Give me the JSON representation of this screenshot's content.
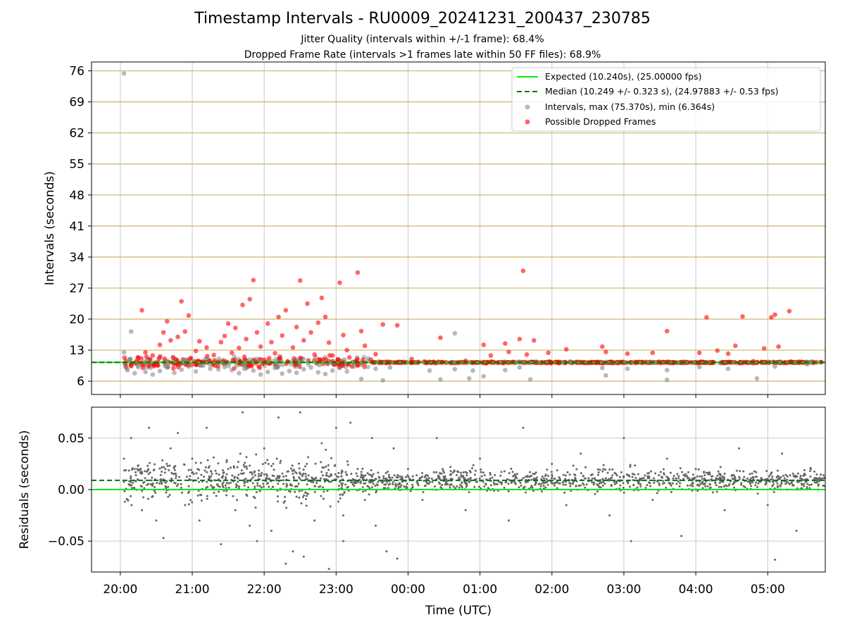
{
  "header": {
    "title": "Timestamp Intervals - RU0009_20241231_200437_230785",
    "subtitle_jitter": "Jitter Quality (intervals within +/-1 frame): 68.4%",
    "subtitle_dropped": "Dropped Frame Rate (intervals >1 frames late within 50 FF files): 68.9%"
  },
  "colors": {
    "expected": "#00ee00",
    "median": "#007700",
    "intervals": "#808080",
    "dropped": "#ff0000",
    "gridline": "#cdb56a",
    "residual_points": "#666666"
  },
  "chart_data": [
    {
      "type": "scatter",
      "title": "",
      "xlabel": "",
      "ylabel": "Intervals (seconds)",
      "ylim": [
        3,
        78
      ],
      "yticks": [
        6,
        13,
        20,
        27,
        34,
        41,
        48,
        55,
        62,
        69,
        76
      ],
      "ytick_labels": [
        "6",
        "13",
        "20",
        "27",
        "34",
        "41",
        "48",
        "55",
        "62",
        "69",
        "76"
      ],
      "xlim_hours": [
        19.6,
        29.8
      ],
      "grid": "horizontal and vertical",
      "legend_placement": "top-right",
      "legend": [
        "Expected (10.240s), (25.00000 fps)",
        "Median (10.249 +/- 0.323 s), (24.97883 +/- 0.53 fps)",
        "Intervals, max (75.370s), min (6.364s)",
        "Possible Dropped Frames"
      ],
      "expected_interval": 10.24,
      "median_interval": 10.249,
      "max_interval": 75.37,
      "min_interval": 6.364,
      "series": [
        {
          "name": "Intervals, max (75.370s), min (6.364s)",
          "points": [
            [
              20.05,
              75.4
            ],
            [
              20.05,
              12.5
            ],
            [
              20.1,
              8.5
            ],
            [
              20.15,
              17.2
            ],
            [
              20.2,
              7.8
            ],
            [
              20.25,
              9.2
            ],
            [
              20.35,
              8.1
            ],
            [
              20.45,
              7.5
            ],
            [
              20.55,
              8.3
            ],
            [
              20.65,
              9.1
            ],
            [
              20.75,
              7.9
            ],
            [
              20.85,
              8.6
            ],
            [
              20.95,
              9.3
            ],
            [
              21.05,
              8.2
            ],
            [
              21.15,
              9.5
            ],
            [
              21.25,
              8.8
            ],
            [
              21.35,
              9.9
            ],
            [
              21.45,
              9.2
            ],
            [
              21.55,
              8.5
            ],
            [
              21.65,
              7.8
            ],
            [
              21.75,
              8.9
            ],
            [
              21.85,
              8.4
            ],
            [
              21.95,
              7.5
            ],
            [
              22.05,
              8.1
            ],
            [
              22.15,
              9.0
            ],
            [
              22.25,
              7.7
            ],
            [
              22.35,
              8.3
            ],
            [
              22.45,
              7.9
            ],
            [
              22.55,
              8.7
            ],
            [
              22.65,
              9.1
            ],
            [
              22.75,
              8.0
            ],
            [
              22.85,
              7.6
            ],
            [
              22.95,
              8.4
            ],
            [
              23.05,
              9.0
            ],
            [
              23.15,
              8.2
            ],
            [
              23.25,
              9.3
            ],
            [
              23.35,
              6.5
            ],
            [
              23.55,
              8.8
            ],
            [
              23.65,
              6.2
            ],
            [
              23.75,
              9.1
            ],
            [
              24.3,
              8.4
            ],
            [
              24.45,
              6.4
            ],
            [
              24.65,
              8.7
            ],
            [
              24.65,
              16.8
            ],
            [
              24.85,
              6.6
            ],
            [
              24.9,
              8.4
            ],
            [
              25.05,
              7.1
            ],
            [
              25.35,
              8.5
            ],
            [
              25.55,
              9.1
            ],
            [
              25.7,
              6.4
            ],
            [
              26.7,
              9.0
            ],
            [
              26.75,
              7.3
            ],
            [
              27.05,
              8.8
            ],
            [
              27.6,
              6.3
            ],
            [
              27.6,
              8.5
            ],
            [
              28.05,
              9.2
            ],
            [
              28.45,
              8.8
            ],
            [
              28.85,
              6.6
            ],
            [
              29.1,
              9.3
            ],
            [
              29.55,
              9.8
            ]
          ]
        },
        {
          "name": "Possible Dropped Frames",
          "points": [
            [
              20.3,
              22.0
            ],
            [
              20.35,
              12.5
            ],
            [
              20.45,
              11.8
            ],
            [
              20.55,
              14.2
            ],
            [
              20.6,
              17.0
            ],
            [
              20.65,
              19.5
            ],
            [
              20.7,
              15.2
            ],
            [
              20.8,
              16.0
            ],
            [
              20.85,
              24.0
            ],
            [
              20.9,
              17.2
            ],
            [
              20.95,
              20.8
            ],
            [
              21.05,
              12.8
            ],
            [
              21.1,
              15.0
            ],
            [
              21.2,
              13.6
            ],
            [
              21.3,
              11.9
            ],
            [
              21.4,
              14.8
            ],
            [
              21.45,
              16.2
            ],
            [
              21.5,
              19.0
            ],
            [
              21.55,
              12.4
            ],
            [
              21.6,
              18.0
            ],
            [
              21.65,
              13.5
            ],
            [
              21.7,
              23.2
            ],
            [
              21.75,
              15.5
            ],
            [
              21.8,
              24.5
            ],
            [
              21.85,
              28.8
            ],
            [
              21.9,
              17.0
            ],
            [
              21.95,
              13.8
            ],
            [
              22.05,
              19.0
            ],
            [
              22.1,
              14.8
            ],
            [
              22.15,
              12.3
            ],
            [
              22.2,
              20.5
            ],
            [
              22.25,
              16.3
            ],
            [
              22.3,
              22.0
            ],
            [
              22.4,
              13.6
            ],
            [
              22.45,
              18.2
            ],
            [
              22.5,
              28.7
            ],
            [
              22.55,
              15.2
            ],
            [
              22.6,
              23.5
            ],
            [
              22.65,
              17.0
            ],
            [
              22.7,
              12.0
            ],
            [
              22.75,
              19.2
            ],
            [
              22.8,
              24.8
            ],
            [
              22.85,
              20.5
            ],
            [
              22.9,
              14.7
            ],
            [
              22.95,
              11.8
            ],
            [
              23.05,
              28.2
            ],
            [
              23.1,
              16.4
            ],
            [
              23.15,
              13.0
            ],
            [
              23.3,
              30.5
            ],
            [
              23.35,
              17.3
            ],
            [
              23.4,
              14.0
            ],
            [
              23.55,
              12.1
            ],
            [
              23.65,
              18.8
            ],
            [
              23.85,
              18.6
            ],
            [
              24.05,
              11.0
            ],
            [
              24.45,
              15.8
            ],
            [
              24.8,
              10.6
            ],
            [
              25.05,
              14.2
            ],
            [
              25.15,
              11.8
            ],
            [
              25.35,
              14.5
            ],
            [
              25.4,
              12.6
            ],
            [
              25.55,
              15.5
            ],
            [
              25.6,
              30.9
            ],
            [
              25.65,
              12.0
            ],
            [
              25.75,
              15.2
            ],
            [
              25.95,
              12.4
            ],
            [
              26.2,
              13.2
            ],
            [
              26.7,
              13.8
            ],
            [
              26.75,
              12.6
            ],
            [
              27.05,
              12.2
            ],
            [
              27.4,
              12.4
            ],
            [
              27.6,
              17.3
            ],
            [
              28.05,
              12.4
            ],
            [
              28.15,
              20.4
            ],
            [
              28.3,
              12.9
            ],
            [
              28.45,
              12.2
            ],
            [
              28.55,
              14.0
            ],
            [
              28.65,
              20.6
            ],
            [
              28.8,
              10.5
            ],
            [
              28.95,
              13.4
            ],
            [
              29.05,
              20.4
            ],
            [
              29.1,
              21.0
            ],
            [
              29.15,
              13.8
            ],
            [
              29.3,
              21.8
            ]
          ]
        }
      ]
    },
    {
      "type": "scatter",
      "title": "",
      "xlabel": "Time (UTC)",
      "ylabel": "Residuals (seconds)",
      "ylim": [
        -0.08,
        0.08
      ],
      "yticks": [
        -0.05,
        0.0,
        0.05
      ],
      "ytick_labels": [
        "−0.05",
        "0.00",
        "0.05"
      ],
      "xlim_hours": [
        19.6,
        29.8
      ],
      "xticks_hours": [
        20,
        21,
        22,
        23,
        24,
        25,
        26,
        27,
        28,
        29
      ],
      "xtick_labels": [
        "20:00",
        "21:00",
        "22:00",
        "23:00",
        "00:00",
        "01:00",
        "02:00",
        "03:00",
        "04:00",
        "05:00"
      ],
      "grid": "horizontal and vertical",
      "expected_residual": 0.0,
      "median_residual": 0.009,
      "series": [
        {
          "name": "",
          "points": [
            [
              20.05,
              0.03
            ],
            [
              20.1,
              -0.01
            ],
            [
              20.15,
              0.05
            ],
            [
              20.2,
              0.02
            ],
            [
              20.3,
              -0.02
            ],
            [
              20.4,
              0.06
            ],
            [
              20.5,
              -0.03
            ],
            [
              20.6,
              0.01
            ],
            [
              20.6,
              -0.047
            ],
            [
              20.7,
              0.04
            ],
            [
              20.8,
              0.055
            ],
            [
              20.9,
              -0.015
            ],
            [
              21.0,
              0.03
            ],
            [
              21.1,
              -0.03
            ],
            [
              21.2,
              0.06
            ],
            [
              21.3,
              0.0
            ],
            [
              21.4,
              -0.053
            ],
            [
              21.5,
              0.02
            ],
            [
              21.6,
              -0.02
            ],
            [
              21.7,
              0.075
            ],
            [
              21.8,
              -0.035
            ],
            [
              21.9,
              -0.05
            ],
            [
              22.0,
              0.04
            ],
            [
              22.1,
              -0.04
            ],
            [
              22.2,
              0.07
            ],
            [
              22.3,
              -0.072
            ],
            [
              22.4,
              -0.06
            ],
            [
              22.5,
              0.075
            ],
            [
              22.55,
              -0.065
            ],
            [
              22.6,
              0.01
            ],
            [
              22.7,
              -0.03
            ],
            [
              22.8,
              0.045
            ],
            [
              22.9,
              -0.077
            ],
            [
              23.0,
              0.06
            ],
            [
              23.1,
              -0.05
            ],
            [
              23.1,
              -0.025
            ],
            [
              23.2,
              0.065
            ],
            [
              23.3,
              0.02
            ],
            [
              23.4,
              -0.01
            ],
            [
              23.5,
              0.05
            ],
            [
              23.55,
              -0.035
            ],
            [
              23.7,
              -0.06
            ],
            [
              23.8,
              0.04
            ],
            [
              23.85,
              -0.067
            ],
            [
              24.0,
              0.02
            ],
            [
              24.2,
              -0.01
            ],
            [
              24.4,
              0.05
            ],
            [
              24.6,
              0.015
            ],
            [
              24.8,
              -0.02
            ],
            [
              25.0,
              0.03
            ],
            [
              25.2,
              0.005
            ],
            [
              25.4,
              -0.03
            ],
            [
              25.6,
              0.06
            ],
            [
              25.8,
              0.0
            ],
            [
              26.0,
              0.025
            ],
            [
              26.2,
              -0.015
            ],
            [
              26.4,
              0.035
            ],
            [
              26.6,
              0.01
            ],
            [
              26.8,
              -0.025
            ],
            [
              27.0,
              0.05
            ],
            [
              27.1,
              -0.05
            ],
            [
              27.2,
              0.015
            ],
            [
              27.4,
              -0.01
            ],
            [
              27.6,
              0.03
            ],
            [
              27.8,
              -0.045
            ],
            [
              28.0,
              0.02
            ],
            [
              28.2,
              0.005
            ],
            [
              28.4,
              -0.02
            ],
            [
              28.6,
              0.04
            ],
            [
              28.8,
              0.01
            ],
            [
              29.0,
              -0.015
            ],
            [
              29.1,
              -0.068
            ],
            [
              29.2,
              0.035
            ],
            [
              29.4,
              -0.04
            ],
            [
              29.6,
              0.02
            ],
            [
              29.7,
              0.0
            ]
          ]
        }
      ]
    }
  ]
}
